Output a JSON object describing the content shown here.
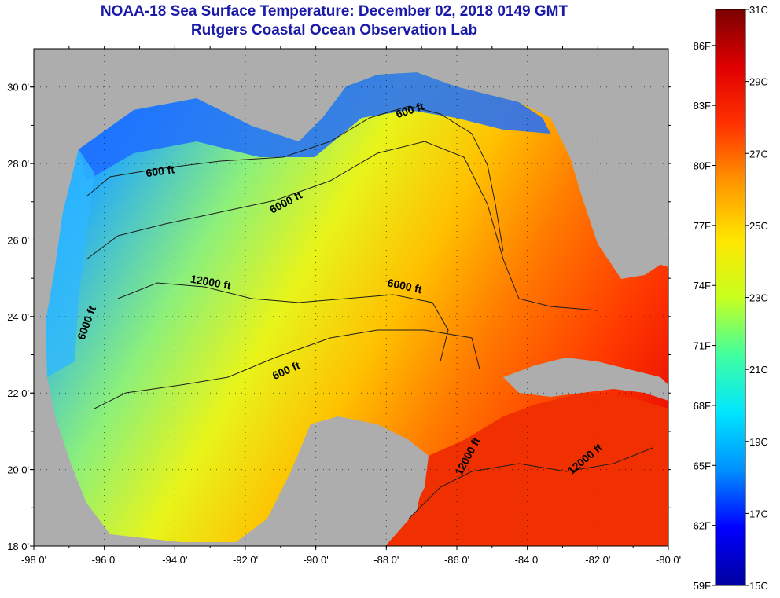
{
  "header": {
    "title": "NOAA-18 Sea Surface Temperature:  December 02, 2018 0149 GMT",
    "subtitle": "Rutgers Coastal Ocean Observation Lab"
  },
  "map": {
    "lon_range": [
      -98,
      -80
    ],
    "lat_range": [
      18,
      31
    ],
    "lat_ticks": [
      {
        "value": 30,
        "label": "30 0'"
      },
      {
        "value": 28,
        "label": "28 0'"
      },
      {
        "value": 26,
        "label": "26 0'"
      },
      {
        "value": 24,
        "label": "24 0'"
      },
      {
        "value": 22,
        "label": "22 0'"
      },
      {
        "value": 20,
        "label": "20 0'"
      },
      {
        "value": 18,
        "label": "18 0'"
      }
    ],
    "lon_ticks": [
      {
        "value": -98,
        "label": "-98 0'"
      },
      {
        "value": -96,
        "label": "-96 0'"
      },
      {
        "value": -94,
        "label": "-94 0'"
      },
      {
        "value": -92,
        "label": "-92 0'"
      },
      {
        "value": -90,
        "label": "-90 0'"
      },
      {
        "value": -88,
        "label": "-88 0'"
      },
      {
        "value": -86,
        "label": "-86 0'"
      },
      {
        "value": -84,
        "label": "-84 0'"
      },
      {
        "value": -82,
        "label": "-82 0'"
      },
      {
        "value": -80,
        "label": "-80 0'"
      }
    ],
    "contour_labels": [
      {
        "text": "600 ft",
        "lon": -94.4,
        "lat": 27.7,
        "rotate": -8
      },
      {
        "text": "600 ft",
        "lon": -87.3,
        "lat": 29.3,
        "rotate": -18
      },
      {
        "text": "6000 ft",
        "lon": -90.8,
        "lat": 26.9,
        "rotate": -28
      },
      {
        "text": "12000 ft",
        "lon": -93.0,
        "lat": 24.8,
        "rotate": 10
      },
      {
        "text": "6000 ft",
        "lon": -96.4,
        "lat": 23.8,
        "rotate": -70
      },
      {
        "text": "6000 ft",
        "lon": -87.5,
        "lat": 24.7,
        "rotate": 12
      },
      {
        "text": "600 ft",
        "lon": -90.8,
        "lat": 22.5,
        "rotate": -24
      },
      {
        "text": "12000 ft",
        "lon": -85.6,
        "lat": 20.3,
        "rotate": -62
      },
      {
        "text": "12000 ft",
        "lon": -82.3,
        "lat": 20.2,
        "rotate": -40
      }
    ],
    "colors": {
      "land": "#adadad",
      "contour": "#1e1e1e"
    }
  },
  "colorbar": {
    "range_c": [
      15,
      31
    ],
    "colors": [
      "#0000a0",
      "#0000ff",
      "#0090ff",
      "#00e6ff",
      "#40ff9f",
      "#c8ff1e",
      "#ffe600",
      "#ff9600",
      "#ff3200",
      "#e00000",
      "#7a0000"
    ],
    "celsius_labels": [
      {
        "value": 31,
        "label": "31C"
      },
      {
        "value": 29,
        "label": "29C"
      },
      {
        "value": 27,
        "label": "27C"
      },
      {
        "value": 25,
        "label": "25C"
      },
      {
        "value": 23,
        "label": "23C"
      },
      {
        "value": 21,
        "label": "21C"
      },
      {
        "value": 19,
        "label": "19C"
      },
      {
        "value": 17,
        "label": "17C"
      },
      {
        "value": 15,
        "label": "15C"
      }
    ],
    "fahrenheit_labels": [
      {
        "value": 86,
        "label": "86F"
      },
      {
        "value": 83,
        "label": "83F"
      },
      {
        "value": 80,
        "label": "80F"
      },
      {
        "value": 77,
        "label": "77F"
      },
      {
        "value": 74,
        "label": "74F"
      },
      {
        "value": 71,
        "label": "71F"
      },
      {
        "value": 68,
        "label": "68F"
      },
      {
        "value": 65,
        "label": "65F"
      },
      {
        "value": 62,
        "label": "62F"
      },
      {
        "value": 59,
        "label": "59F"
      }
    ]
  }
}
